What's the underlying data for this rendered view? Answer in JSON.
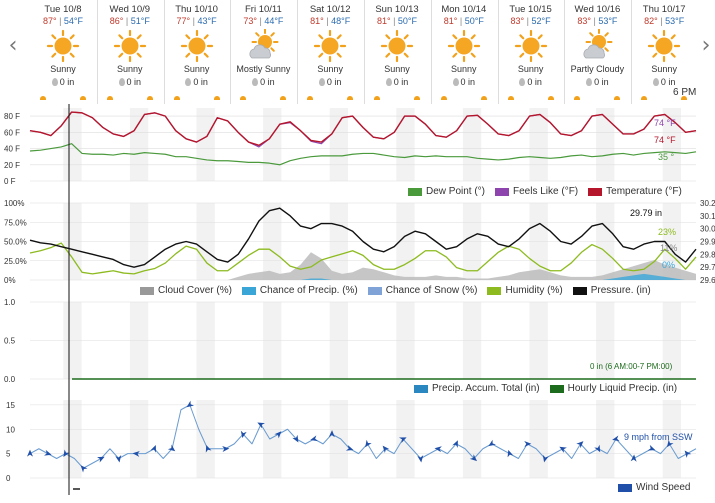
{
  "nav": {
    "prev_icon": "chevron-left-icon",
    "next_icon": "chevron-right-icon",
    "prev_glyph": "‹",
    "next_glyph": "›"
  },
  "days": [
    {
      "date": "Tue 10/8",
      "hi": "87°",
      "lo": "54°F",
      "cond": "Sunny",
      "precip": "0 in",
      "icon": "sun-icon"
    },
    {
      "date": "Wed 10/9",
      "hi": "86°",
      "lo": "51°F",
      "cond": "Sunny",
      "precip": "0 in",
      "icon": "sun-icon"
    },
    {
      "date": "Thu 10/10",
      "hi": "77°",
      "lo": "43°F",
      "cond": "Sunny",
      "precip": "0 in",
      "icon": "sun-icon"
    },
    {
      "date": "Fri 10/11",
      "hi": "73°",
      "lo": "44°F",
      "cond": "Mostly Sunny",
      "precip": "0 in",
      "icon": "sun-cloud-icon"
    },
    {
      "date": "Sat 10/12",
      "hi": "81°",
      "lo": "48°F",
      "cond": "Sunny",
      "precip": "0 in",
      "icon": "sun-icon"
    },
    {
      "date": "Sun 10/13",
      "hi": "81°",
      "lo": "50°F",
      "cond": "Sunny",
      "precip": "0 in",
      "icon": "sun-icon"
    },
    {
      "date": "Mon 10/14",
      "hi": "81°",
      "lo": "50°F",
      "cond": "Sunny",
      "precip": "0 in",
      "icon": "sun-icon"
    },
    {
      "date": "Tue 10/15",
      "hi": "83°",
      "lo": "52°F",
      "cond": "Sunny",
      "precip": "0 in",
      "icon": "sun-icon"
    },
    {
      "date": "Wed 10/16",
      "hi": "83°",
      "lo": "53°F",
      "cond": "Partly Cloudy",
      "precip": "0 in",
      "icon": "sun-cloud-icon"
    },
    {
      "date": "Thu 10/17",
      "hi": "82°",
      "lo": "53°F",
      "cond": "Sunny",
      "precip": "0 in",
      "icon": "sun-icon"
    }
  ],
  "time_label": "6 PM",
  "colors": {
    "temperature": "#b5162b",
    "feels_like": "#8e44ad",
    "dew_point": "#4a9a3c",
    "humidity": "#8dbb1f",
    "pressure": "#111111",
    "cloud": "#999999",
    "precip_chance": "#3aa6d8",
    "snow_chance": "#7fa3d6",
    "accum": "#2b87c0",
    "hourly": "#1d6b1d",
    "wind": "#1f4fa8"
  },
  "chart_data": [
    {
      "type": "line",
      "name": "temperature",
      "y_ticks": [
        "80 F",
        "60 F",
        "40 F",
        "20 F",
        "0 F"
      ],
      "ylim": [
        0,
        90
      ],
      "legend": [
        "Dew Point (°)",
        "Feels Like (°F)",
        "Temperature (°F)"
      ],
      "annotations": [
        "74 °F",
        "74 °F",
        "35 °"
      ],
      "series": [
        {
          "name": "Temperature (°F)",
          "values": [
            62,
            60,
            56,
            68,
            85,
            84,
            78,
            66,
            58,
            55,
            62,
            82,
            84,
            80,
            62,
            52,
            48,
            55,
            78,
            74,
            60,
            48,
            44,
            52,
            70,
            73,
            62,
            50,
            48,
            58,
            78,
            80,
            66,
            54,
            52,
            60,
            80,
            80,
            70,
            56,
            54,
            62,
            80,
            81,
            70,
            58,
            56,
            62,
            80,
            82,
            72,
            58,
            56,
            62,
            80,
            82,
            70,
            58,
            58,
            64,
            80,
            82,
            72,
            60,
            62
          ]
        },
        {
          "name": "Feels Like (°F)",
          "values": [
            62,
            60,
            56,
            68,
            85,
            84,
            78,
            66,
            58,
            55,
            62,
            82,
            84,
            80,
            62,
            52,
            48,
            55,
            78,
            74,
            60,
            48,
            42,
            52,
            70,
            72,
            62,
            49,
            46,
            58,
            78,
            80,
            66,
            54,
            52,
            60,
            80,
            80,
            70,
            56,
            54,
            62,
            80,
            81,
            70,
            58,
            56,
            62,
            80,
            82,
            72,
            58,
            56,
            62,
            80,
            82,
            70,
            58,
            58,
            64,
            80,
            82,
            72,
            60,
            62
          ]
        },
        {
          "name": "Dew Point (°)",
          "values": [
            37,
            38,
            40,
            42,
            46,
            34,
            33,
            33,
            32,
            34,
            33,
            35,
            34,
            33,
            30,
            30,
            28,
            26,
            25,
            25,
            24,
            23,
            23,
            22,
            20,
            25,
            28,
            30,
            31,
            31,
            31,
            33,
            34,
            34,
            32,
            30,
            29,
            31,
            30,
            31,
            30,
            30,
            30,
            28,
            27,
            26,
            27,
            29,
            30,
            29,
            28,
            29,
            31,
            32,
            30,
            31,
            33,
            34,
            32,
            34,
            35,
            36,
            35,
            34,
            36
          ]
        }
      ]
    },
    {
      "type": "line",
      "name": "humidity-pressure",
      "y_ticks_left": [
        "100%",
        "75.0%",
        "50.0%",
        "25.0%",
        "0%"
      ],
      "y_ticks_right": [
        "30.2",
        "30.1",
        "30.0",
        "29.9",
        "29.8",
        "29.7",
        "29.6"
      ],
      "legend": [
        "Cloud Cover (%)",
        "Chance of Precip. (%)",
        "Chance of Snow (%)",
        "Humidity (%)",
        "Pressure. (in)"
      ],
      "annotations": [
        "29.79 in",
        "23%",
        "11%",
        "0%"
      ],
      "series": [
        {
          "name": "Pressure. (in)",
          "axis": "right",
          "values": [
            29.91,
            29.89,
            29.88,
            29.86,
            29.84,
            29.82,
            29.8,
            29.78,
            29.76,
            29.72,
            29.7,
            29.72,
            29.78,
            29.84,
            29.88,
            29.9,
            29.88,
            29.82,
            29.76,
            29.74,
            29.8,
            29.92,
            30.06,
            30.14,
            30.16,
            30.1,
            30.02,
            30.0,
            30.04,
            30.04,
            30.02,
            29.98,
            29.9,
            29.84,
            29.82,
            29.86,
            29.94,
            29.98,
            29.96,
            29.9,
            29.84,
            29.86,
            29.92,
            29.96,
            29.94,
            29.88,
            29.86,
            29.92,
            30.0,
            30.04,
            29.98,
            29.9,
            29.88,
            29.94,
            30.02,
            30.04,
            29.96,
            29.86,
            29.84,
            29.88,
            29.9,
            29.9,
            29.8,
            29.74,
            29.84
          ]
        },
        {
          "name": "Humidity (%)",
          "axis": "left",
          "values": [
            35,
            38,
            42,
            48,
            30,
            10,
            8,
            10,
            12,
            9,
            8,
            12,
            15,
            22,
            34,
            44,
            40,
            22,
            12,
            12,
            22,
            32,
            40,
            40,
            30,
            18,
            14,
            17,
            26,
            30,
            34,
            38,
            32,
            20,
            14,
            14,
            20,
            28,
            38,
            38,
            30,
            16,
            12,
            12,
            24,
            36,
            44,
            40,
            28,
            18,
            12,
            12,
            22,
            36,
            46,
            40,
            28,
            14,
            12,
            14,
            24,
            40,
            28,
            14,
            30
          ]
        },
        {
          "name": "Cloud Cover (%)",
          "axis": "left",
          "values": [
            0,
            0,
            0,
            0,
            0,
            0,
            0,
            0,
            0,
            0,
            0,
            0,
            0,
            0,
            0,
            0,
            0,
            0,
            0,
            0,
            4,
            8,
            10,
            12,
            8,
            10,
            20,
            36,
            28,
            12,
            8,
            10,
            16,
            14,
            10,
            6,
            4,
            4,
            4,
            6,
            4,
            4,
            2,
            2,
            2,
            4,
            6,
            10,
            12,
            14,
            10,
            6,
            4,
            4,
            4,
            6,
            10,
            14,
            18,
            22,
            26,
            20,
            16,
            12,
            8
          ]
        },
        {
          "name": "Chance of Precip. (%)",
          "axis": "left",
          "values": [
            0,
            0,
            0,
            0,
            0,
            0,
            0,
            0,
            0,
            0,
            0,
            0,
            0,
            0,
            0,
            0,
            0,
            0,
            0,
            0,
            0,
            0,
            0,
            0,
            0,
            0,
            0,
            2,
            2,
            0,
            0,
            0,
            0,
            0,
            0,
            0,
            0,
            0,
            0,
            0,
            0,
            0,
            0,
            0,
            0,
            0,
            0,
            0,
            0,
            0,
            0,
            0,
            0,
            0,
            0,
            0,
            2,
            4,
            6,
            8,
            6,
            4,
            2,
            0,
            0
          ]
        }
      ]
    },
    {
      "type": "line",
      "name": "precipitation",
      "y_ticks": [
        "1.0",
        "0.5",
        "0.0"
      ],
      "legend": [
        "Precip. Accum. Total (in)",
        "Hourly Liquid Precip. (in)"
      ],
      "annotations": [
        "0 in (6 AM:00-7 PM:00)"
      ],
      "series": [
        {
          "name": "Precip. Accum. Total (in)",
          "values": [
            0,
            0,
            0,
            0,
            0,
            0,
            0,
            0,
            0,
            0
          ]
        }
      ]
    },
    {
      "type": "line",
      "name": "wind",
      "y_ticks": [
        "15",
        "10",
        "5",
        "0"
      ],
      "ylim": [
        0,
        16
      ],
      "legend": [
        "Wind Speed"
      ],
      "annotations": [
        "9 mph from SSW"
      ],
      "series": [
        {
          "name": "Wind Speed",
          "values": [
            5,
            6,
            5,
            4,
            5,
            4,
            2,
            3,
            4,
            6,
            4,
            5,
            5,
            5,
            6,
            4,
            6,
            14,
            15,
            10,
            6,
            6,
            6,
            7,
            9,
            7,
            11,
            8,
            9,
            10,
            8,
            7,
            8,
            7,
            9,
            8,
            6,
            5,
            7,
            4,
            6,
            5,
            8,
            6,
            4,
            5,
            6,
            5,
            7,
            6,
            4,
            6,
            7,
            6,
            5,
            4,
            7,
            6,
            4,
            5,
            6,
            4,
            7,
            5,
            6,
            5,
            8,
            6,
            4,
            5,
            6,
            5,
            7,
            4,
            5,
            6
          ]
        }
      ]
    }
  ]
}
